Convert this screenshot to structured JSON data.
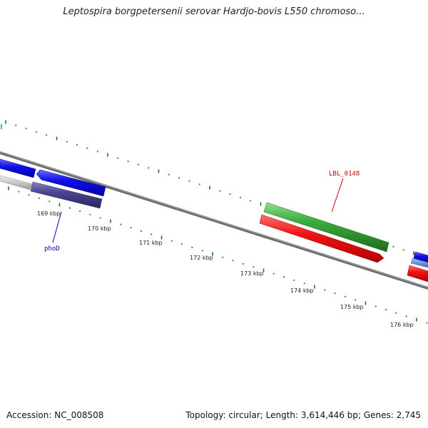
{
  "title": "Leptospira borgpetersenii serovar Hardjo-bovis L550 chromoso...",
  "footer": {
    "accession": "Accession: NC_008508",
    "summary": "Topology: circular; Length: 3,614,446 bp; Genes: 2,745"
  },
  "colors": {
    "backbone": "#808080",
    "tick": "#1a7a1a",
    "gene_blue": "#1010e0",
    "gene_navy": "#4a4490",
    "gene_green": "#3aa83a",
    "gene_red": "#ee1010",
    "gene_gray": "#c8c8c8",
    "gene_steel": "#5a8ad0",
    "label_red": "#cc0000",
    "label_blue": "#0000bb"
  },
  "axis": {
    "unit": "kbp",
    "tick_labels": [
      "169 kbp",
      "170 kbp",
      "171 kbp",
      "172 kbp",
      "173 kbp",
      "174 kbp",
      "175 kbp",
      "176 kbp"
    ]
  },
  "gene_labels": [
    {
      "name": "LBL_0148",
      "color": "label_red"
    },
    {
      "name": "phoD",
      "color": "label_blue"
    }
  ]
}
